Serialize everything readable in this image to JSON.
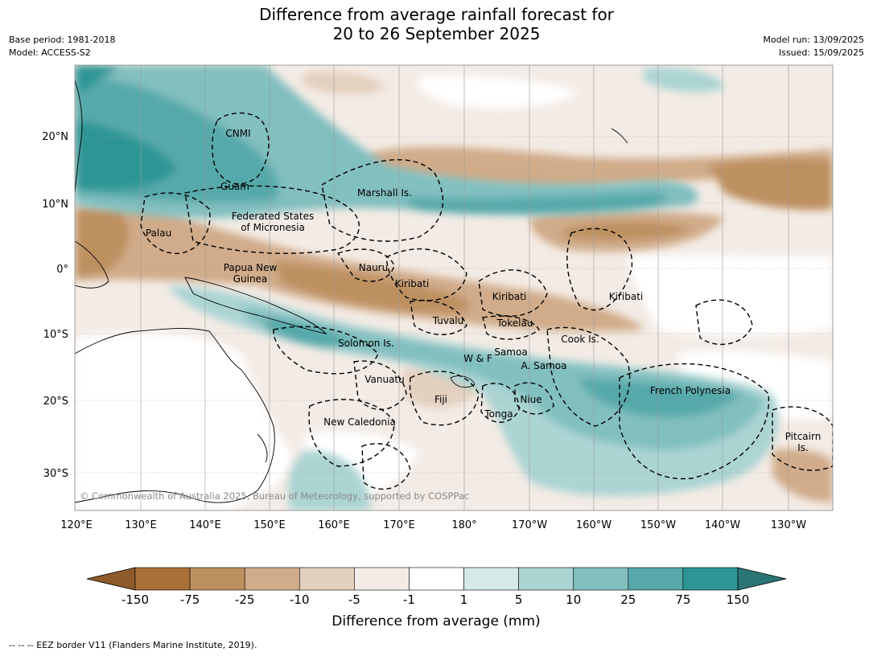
{
  "header": {
    "title_line1": "Difference from average rainfall forecast for",
    "title_line2": "20 to 26 September 2025",
    "base_period": "Base period: 1981-2018",
    "model": "Model: ACCESS-S2",
    "model_run": "Model run: 13/09/2025",
    "issued": "Issued: 15/09/2025"
  },
  "map": {
    "lat_ticks": [
      "20°N",
      "10°N",
      "0°",
      "10°S",
      "20°S",
      "30°S"
    ],
    "lon_ticks": [
      "120°E",
      "130°E",
      "140°E",
      "150°E",
      "160°E",
      "170°E",
      "180°",
      "170°W",
      "160°W",
      "150°W",
      "140°W",
      "130°W"
    ],
    "region_labels": {
      "cnmi": "CNMI",
      "guam": "Guam",
      "marshall": "Marshall Is.",
      "fsm_1": "Federated States",
      "fsm_2": "of Micronesia",
      "palau": "Palau",
      "png_1": "Papua New",
      "png_2": "Guinea",
      "nauru": "Nauru",
      "kiribati_w": "Kiribati",
      "kiribati_c": "Kiribati",
      "kiribati_e": "Kiribati",
      "tuvalu": "Tuvalu",
      "tokelau": "Tokelau",
      "cook": "Cook Is.",
      "solomon": "Solomon Is.",
      "wf": "W & F",
      "samoa": "Samoa",
      "asamoa": "A. Samoa",
      "vanuatu": "Vanuatu",
      "fiji": "Fiji",
      "niue": "Niue",
      "tonga": "Tonga",
      "frpoly": "French Polynesia",
      "newcal": "New Caledonia",
      "pitcairn_1": "Pitcairn",
      "pitcairn_2": "Is."
    },
    "copyright": "© Commonwealth of Australia 2025, Bureau of Meteorology, supported by COSPPac"
  },
  "colorbar": {
    "labels": [
      "-150",
      "-75",
      "-25",
      "-10",
      "-5",
      "-1",
      "1",
      "5",
      "10",
      "25",
      "75",
      "150"
    ],
    "colors": [
      "#a97038",
      "#bd9060",
      "#d0ac8a",
      "#e4d0bf",
      "#f3ebe5",
      "#ffffff",
      "#d5e9e7",
      "#abd4d3",
      "#82bfbf",
      "#57a9aa",
      "#2e9595"
    ],
    "low_extend_color": "#8e5a2a",
    "high_extend_color": "#2b7575",
    "title": "Difference from average (mm)"
  },
  "footer": {
    "legend_text": "-- -- -- EEZ border V11 (Flanders Marine Institute, 2019)."
  }
}
